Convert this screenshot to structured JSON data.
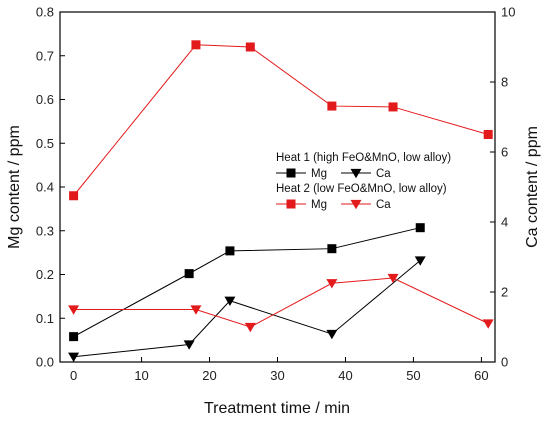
{
  "chart_data": {
    "type": "line",
    "xlabel": "Treatment time / min",
    "ylabel_left": "Mg content / ppm",
    "ylabel_right": "Ca content / ppm",
    "xlim": [
      -2,
      62
    ],
    "ylim_left": [
      0,
      0.8
    ],
    "ylim_right": [
      0,
      10
    ],
    "x_ticks": [
      0,
      10,
      20,
      30,
      40,
      50,
      60
    ],
    "y_ticks_left": [
      0.0,
      0.1,
      0.2,
      0.3,
      0.4,
      0.5,
      0.6,
      0.7,
      0.8
    ],
    "y_ticks_right": [
      0,
      2,
      4,
      6,
      8,
      10
    ],
    "grid": false,
    "legend": {
      "placement": "right",
      "groups": [
        {
          "title": "Heat 1 (high FeO&MnO, low alloy)",
          "entries": [
            "Mg",
            "Ca"
          ]
        },
        {
          "title": "Heat 2 (low FeO&MnO, low alloy)",
          "entries": [
            "Mg",
            "Ca"
          ]
        }
      ]
    },
    "series": [
      {
        "name": "Mg",
        "group": "Heat 1 (high FeO&MnO, low alloy)",
        "axis": "left",
        "marker": "square",
        "color": "#000000",
        "x": [
          0,
          17,
          23,
          38,
          51
        ],
        "y": [
          0.058,
          0.202,
          0.254,
          0.259,
          0.307
        ]
      },
      {
        "name": "Ca",
        "group": "Heat 1 (high FeO&MnO, low alloy)",
        "axis": "right",
        "marker": "triangle-down",
        "color": "#000000",
        "x": [
          0,
          17,
          23,
          38,
          51
        ],
        "y": [
          0.15,
          0.5,
          1.75,
          0.8,
          2.9
        ]
      },
      {
        "name": "Mg",
        "group": "Heat 2 (low FeO&MnO, low alloy)",
        "axis": "left",
        "marker": "square",
        "color": "#e31a1c",
        "x": [
          0,
          18,
          26,
          38,
          47,
          61
        ],
        "y": [
          0.38,
          0.725,
          0.72,
          0.585,
          0.583,
          0.52
        ]
      },
      {
        "name": "Ca",
        "group": "Heat 2 (low FeO&MnO, low alloy)",
        "axis": "right",
        "marker": "triangle-down",
        "color": "#e31a1c",
        "x": [
          0,
          18,
          26,
          38,
          47,
          61
        ],
        "y": [
          1.5,
          1.5,
          1.0,
          2.25,
          2.4,
          1.1
        ]
      }
    ]
  }
}
